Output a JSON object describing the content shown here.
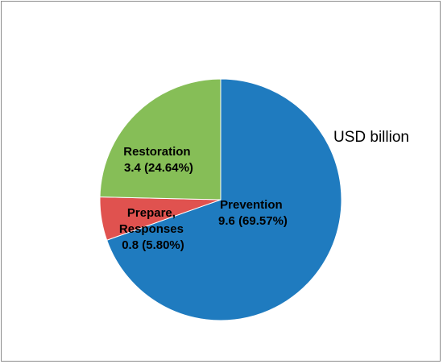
{
  "chart_data": {
    "type": "pie",
    "unit_label": "USD billion",
    "colors": {
      "Prevention": "#1f7bbf",
      "Prepare, Responses": "#e0524f",
      "Restoration": "#86be57"
    },
    "slices": [
      {
        "name": "Prevention",
        "value": 9.6,
        "percent": 69.57,
        "label_lines": [
          "Prevention",
          "9.6 (69.57%)"
        ]
      },
      {
        "name": "Prepare, Responses",
        "value": 0.8,
        "percent": 5.8,
        "label_lines": [
          "Prepare,",
          "Responses",
          "0.8 (5.80%)"
        ]
      },
      {
        "name": "Restoration",
        "value": 3.4,
        "percent": 24.64,
        "label_lines": [
          "Restoration",
          "3.4 (24.64%)"
        ]
      }
    ]
  }
}
